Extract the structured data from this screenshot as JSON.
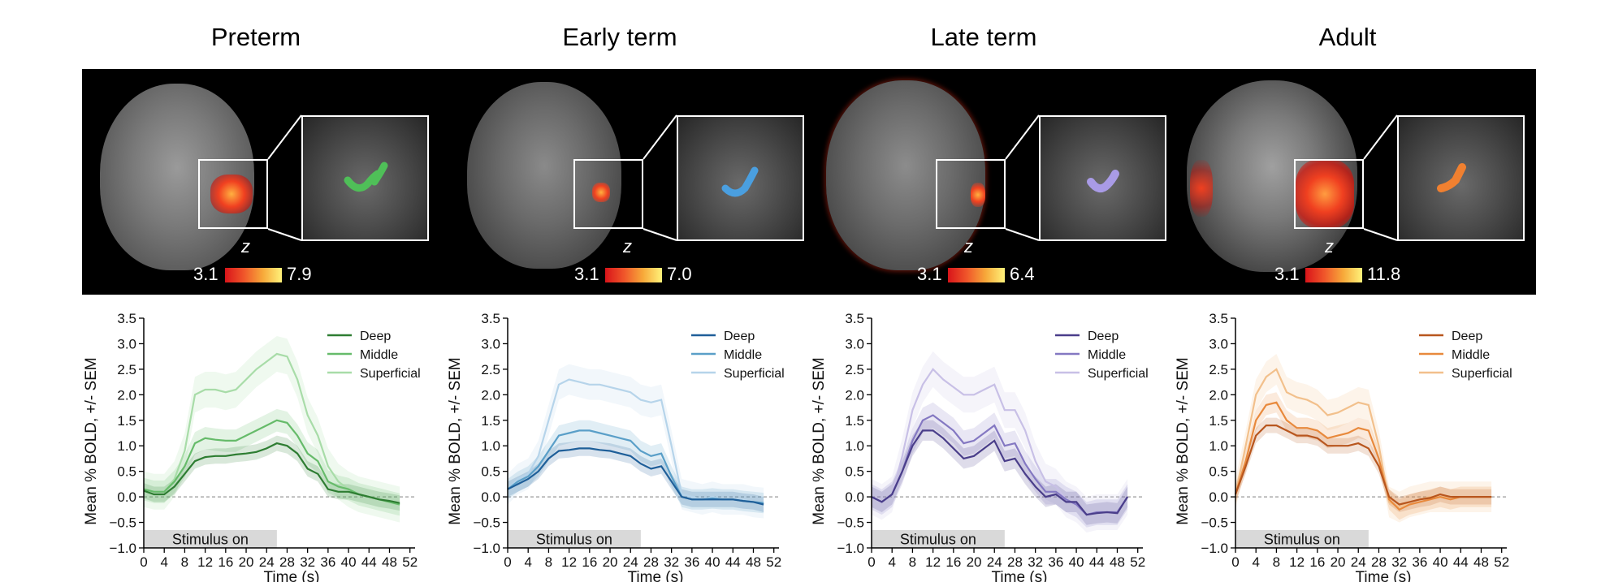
{
  "panels": [
    {
      "title": "Preterm",
      "colorbar": {
        "symbol": "z",
        "min": "3.1",
        "max": "7.9"
      },
      "roi_color": "#4fbf58",
      "chart_data": {
        "type": "line",
        "ylabel": "Mean % BOLD, +/- SEM",
        "xlabel": "Time (s)",
        "xlim": [
          0,
          53
        ],
        "ylim": [
          -1.0,
          3.5
        ],
        "xticks": [
          "0",
          "4",
          "8",
          "12",
          "16",
          "20",
          "24",
          "28",
          "32",
          "36",
          "40",
          "44",
          "48",
          "52"
        ],
        "yticks": [
          "3.5",
          "3.0",
          "2.5",
          "2.0",
          "1.5",
          "1.0",
          "0.5",
          "0.0",
          "−0.5",
          "−1.0"
        ],
        "stimulus": {
          "label": "Stimulus on",
          "start": 0,
          "end": 26
        },
        "x": [
          0,
          2,
          4,
          6,
          8,
          10,
          12,
          14,
          16,
          18,
          20,
          22,
          24,
          26,
          28,
          30,
          32,
          34,
          36,
          38,
          40,
          42,
          44,
          46,
          48,
          50
        ],
        "series": [
          {
            "name": "Deep",
            "color": "#2e7d32",
            "sem": 0.15,
            "values": [
              0.12,
              0.05,
              0.05,
              0.2,
              0.45,
              0.7,
              0.78,
              0.8,
              0.8,
              0.83,
              0.85,
              0.88,
              0.95,
              1.05,
              1.0,
              0.85,
              0.55,
              0.45,
              0.15,
              0.1,
              0.1,
              0.05,
              0.0,
              -0.05,
              -0.08,
              -0.12
            ]
          },
          {
            "name": "Middle",
            "color": "#66bb6a",
            "sem": 0.22,
            "values": [
              0.15,
              0.1,
              0.1,
              0.3,
              0.6,
              1.05,
              1.15,
              1.12,
              1.1,
              1.1,
              1.2,
              1.3,
              1.4,
              1.5,
              1.45,
              1.2,
              0.85,
              0.7,
              0.3,
              0.2,
              0.15,
              0.05,
              0.0,
              -0.05,
              -0.1,
              -0.15
            ]
          },
          {
            "name": "Superficial",
            "color": "#a8dca8",
            "sem": 0.35,
            "values": [
              0.15,
              0.1,
              0.1,
              0.35,
              0.9,
              2.0,
              2.1,
              2.1,
              2.05,
              2.1,
              2.3,
              2.5,
              2.65,
              2.8,
              2.75,
              2.3,
              1.6,
              1.2,
              0.6,
              0.3,
              0.15,
              0.05,
              0.0,
              -0.05,
              -0.1,
              -0.15
            ]
          }
        ]
      }
    },
    {
      "title": "Early term",
      "colorbar": {
        "symbol": "z",
        "min": "3.1",
        "max": "7.0"
      },
      "roi_color": "#4a9fe0",
      "chart_data": {
        "type": "line",
        "ylabel": "Mean % BOLD, +/- SEM",
        "xlabel": "Time (s)",
        "xlim": [
          0,
          53
        ],
        "ylim": [
          -1.0,
          3.5
        ],
        "xticks": [
          "0",
          "4",
          "8",
          "12",
          "16",
          "20",
          "24",
          "28",
          "32",
          "36",
          "40",
          "44",
          "48",
          "52"
        ],
        "yticks": [
          "3.5",
          "3.0",
          "2.5",
          "2.0",
          "1.5",
          "1.0",
          "0.5",
          "0.0",
          "−0.5",
          "−1.0"
        ],
        "stimulus": {
          "label": "Stimulus on",
          "start": 0,
          "end": 26
        },
        "x": [
          0,
          2,
          4,
          6,
          8,
          10,
          12,
          14,
          16,
          18,
          20,
          22,
          24,
          26,
          28,
          30,
          32,
          34,
          36,
          38,
          40,
          42,
          44,
          46,
          48,
          50
        ],
        "series": [
          {
            "name": "Deep",
            "color": "#1f5f99",
            "sem": 0.15,
            "values": [
              0.15,
              0.25,
              0.35,
              0.5,
              0.75,
              0.9,
              0.92,
              0.95,
              0.95,
              0.92,
              0.9,
              0.85,
              0.8,
              0.65,
              0.55,
              0.6,
              0.3,
              0.0,
              -0.05,
              -0.05,
              -0.05,
              -0.05,
              -0.05,
              -0.08,
              -0.1,
              -0.15
            ]
          },
          {
            "name": "Middle",
            "color": "#5a9fc8",
            "sem": 0.2,
            "values": [
              0.15,
              0.3,
              0.4,
              0.6,
              0.9,
              1.2,
              1.25,
              1.3,
              1.3,
              1.25,
              1.2,
              1.15,
              1.1,
              0.9,
              0.8,
              0.85,
              0.4,
              0.0,
              -0.05,
              -0.05,
              -0.03,
              -0.05,
              -0.05,
              -0.08,
              -0.1,
              -0.12
            ]
          },
          {
            "name": "Superficial",
            "color": "#b6d4ea",
            "sem": 0.3,
            "values": [
              0.15,
              0.35,
              0.45,
              0.8,
              1.5,
              2.2,
              2.3,
              2.25,
              2.2,
              2.2,
              2.15,
              2.1,
              2.05,
              1.9,
              1.85,
              1.9,
              1.0,
              0.05,
              0.0,
              -0.05,
              0.0,
              -0.05,
              -0.05,
              -0.05,
              -0.1,
              -0.12
            ]
          }
        ]
      }
    },
    {
      "title": "Late term",
      "colorbar": {
        "symbol": "z",
        "min": "3.1",
        "max": "6.4"
      },
      "roi_color": "#a99be6",
      "chart_data": {
        "type": "line",
        "ylabel": "Mean % BOLD, +/- SEM",
        "xlabel": "Time (s)",
        "xlim": [
          0,
          53
        ],
        "ylim": [
          -1.0,
          3.5
        ],
        "xticks": [
          "0",
          "4",
          "8",
          "12",
          "16",
          "20",
          "24",
          "28",
          "32",
          "36",
          "40",
          "44",
          "48",
          "52"
        ],
        "yticks": [
          "3.5",
          "3.0",
          "2.5",
          "2.0",
          "1.5",
          "1.0",
          "0.5",
          "0.0",
          "−0.5",
          "−1.0"
        ],
        "stimulus": {
          "label": "Stimulus on",
          "start": 0,
          "end": 26
        },
        "x": [
          0,
          2,
          4,
          6,
          8,
          10,
          12,
          14,
          16,
          18,
          20,
          22,
          24,
          26,
          28,
          30,
          32,
          34,
          36,
          38,
          40,
          42,
          44,
          46,
          48,
          50
        ],
        "series": [
          {
            "name": "Deep",
            "color": "#4a3e8a",
            "sem": 0.2,
            "values": [
              0.0,
              -0.1,
              0.05,
              0.5,
              1.0,
              1.3,
              1.3,
              1.15,
              0.95,
              0.75,
              0.8,
              0.95,
              1.1,
              0.7,
              0.75,
              0.45,
              0.2,
              0.0,
              0.05,
              -0.1,
              -0.1,
              -0.35,
              -0.32,
              -0.3,
              -0.32,
              0.0
            ]
          },
          {
            "name": "Middle",
            "color": "#8478c2",
            "sem": 0.25,
            "values": [
              0.0,
              -0.1,
              0.05,
              0.5,
              1.1,
              1.5,
              1.6,
              1.45,
              1.3,
              1.05,
              1.1,
              1.25,
              1.4,
              1.0,
              1.05,
              0.65,
              0.35,
              0.1,
              0.1,
              -0.05,
              -0.15,
              -0.35,
              -0.3,
              -0.3,
              -0.3,
              0.0
            ]
          },
          {
            "name": "Superficial",
            "color": "#c8c0e6",
            "sem": 0.35,
            "values": [
              0.0,
              -0.1,
              0.05,
              0.8,
              1.7,
              2.2,
              2.5,
              2.3,
              2.15,
              2.0,
              2.0,
              2.1,
              2.2,
              1.7,
              1.7,
              1.3,
              0.7,
              0.3,
              0.2,
              -0.05,
              -0.15,
              -0.35,
              -0.3,
              -0.3,
              -0.3,
              0.0
            ]
          }
        ]
      }
    },
    {
      "title": "Adult",
      "colorbar": {
        "symbol": "z",
        "min": "3.1",
        "max": "11.8"
      },
      "roi_color": "#f08030",
      "chart_data": {
        "type": "line",
        "ylabel": "Mean % BOLD, +/- SEM",
        "xlabel": "Time (s)",
        "xlim": [
          0,
          53
        ],
        "ylim": [
          -1.0,
          3.5
        ],
        "xticks": [
          "0",
          "4",
          "8",
          "12",
          "16",
          "20",
          "24",
          "28",
          "32",
          "36",
          "40",
          "44",
          "48",
          "52"
        ],
        "yticks": [
          "3.5",
          "3.0",
          "2.5",
          "2.0",
          "1.5",
          "1.0",
          "0.5",
          "0.0",
          "−0.5",
          "−1.0"
        ],
        "stimulus": {
          "label": "Stimulus on",
          "start": 0,
          "end": 26
        },
        "x": [
          0,
          2,
          4,
          6,
          8,
          10,
          12,
          14,
          16,
          18,
          20,
          22,
          24,
          26,
          28,
          30,
          32,
          34,
          36,
          38,
          40,
          42,
          44,
          46,
          48,
          50
        ],
        "series": [
          {
            "name": "Deep",
            "color": "#b8561e",
            "sem": 0.15,
            "values": [
              0.05,
              0.6,
              1.2,
              1.4,
              1.4,
              1.3,
              1.2,
              1.2,
              1.15,
              1.0,
              1.0,
              1.0,
              1.05,
              0.95,
              0.6,
              0.0,
              -0.15,
              -0.1,
              -0.05,
              -0.02,
              0.05,
              0.0,
              0.0,
              0.0,
              0.0,
              0.0
            ]
          },
          {
            "name": "Middle",
            "color": "#e8893c",
            "sem": 0.2,
            "values": [
              0.05,
              0.7,
              1.5,
              1.8,
              1.85,
              1.5,
              1.35,
              1.35,
              1.3,
              1.15,
              1.2,
              1.25,
              1.35,
              1.3,
              0.75,
              -0.05,
              -0.25,
              -0.15,
              -0.1,
              -0.05,
              0.0,
              -0.05,
              0.0,
              0.0,
              0.0,
              0.0
            ]
          },
          {
            "name": "Superficial",
            "color": "#f2c08c",
            "sem": 0.3,
            "values": [
              0.05,
              1.0,
              2.0,
              2.35,
              2.5,
              2.05,
              1.95,
              1.9,
              1.8,
              1.6,
              1.65,
              1.75,
              1.85,
              1.8,
              1.0,
              -0.1,
              -0.2,
              -0.1,
              -0.05,
              0.0,
              0.0,
              0.0,
              0.0,
              0.0,
              0.0,
              0.0
            ]
          }
        ]
      }
    }
  ]
}
